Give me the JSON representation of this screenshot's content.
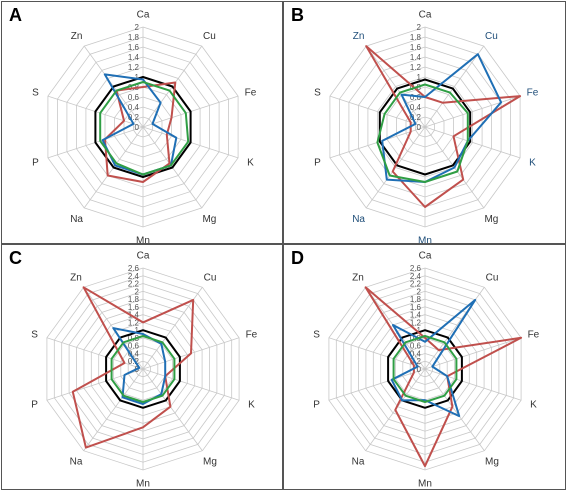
{
  "axes_order": [
    "Ca",
    "Cu",
    "Fe",
    "K",
    "Mg",
    "Mn",
    "Na",
    "P",
    "S",
    "Zn"
  ],
  "colors": {
    "grid": "#c8c8c8",
    "black": "#000000",
    "red": "#c0504d",
    "blue": "#1f6fb5",
    "green": "#2f9e44",
    "label_dark": "#333333",
    "label_blue": "#1f4e79"
  },
  "chart_data": [
    {
      "panel": "A",
      "type": "radar",
      "rmax": 2,
      "ticks": [
        "0",
        "0.2",
        "0.4",
        "0.6",
        "0.8",
        "1",
        "1.2",
        "1.4",
        "1.6",
        "1.8",
        "2"
      ],
      "axes": [
        "Ca",
        "Cu",
        "Fe",
        "K",
        "Mg",
        "Mn",
        "Na",
        "P",
        "S",
        "Zn"
      ],
      "highlight_axes": [],
      "series": [
        {
          "color": "black",
          "values": [
            1.0,
            1.0,
            1.0,
            1.0,
            1.0,
            1.0,
            1.0,
            1.0,
            1.0,
            1.0
          ]
        },
        {
          "color": "red",
          "values": [
            0.8,
            1.1,
            0.6,
            0.5,
            0.9,
            1.1,
            1.2,
            0.8,
            0.4,
            0.9
          ]
        },
        {
          "color": "blue",
          "values": [
            0.95,
            0.6,
            0.2,
            0.7,
            0.95,
            0.95,
            0.95,
            0.85,
            0.2,
            1.3
          ]
        },
        {
          "color": "green",
          "values": [
            0.9,
            0.9,
            0.9,
            0.95,
            0.95,
            0.95,
            0.9,
            0.9,
            0.9,
            0.9
          ]
        }
      ]
    },
    {
      "panel": "B",
      "type": "radar",
      "rmax": 2,
      "ticks": [
        "0",
        "0.2",
        "0.4",
        "0.6",
        "0.8",
        "1",
        "1.2",
        "1.4",
        "1.6",
        "1.8",
        "2"
      ],
      "axes": [
        "Ca",
        "Cu",
        "Fe",
        "K",
        "Mg",
        "Mn",
        "Na",
        "P",
        "S",
        "Zn"
      ],
      "highlight_axes": [
        "Cu",
        "Fe",
        "K",
        "Mn",
        "Na",
        "Zn"
      ],
      "series": [
        {
          "color": "black",
          "values": [
            0.95,
            0.95,
            0.95,
            0.95,
            0.95,
            0.95,
            0.95,
            0.95,
            0.95,
            0.95
          ]
        },
        {
          "color": "red",
          "values": [
            0.6,
            0.6,
            2.0,
            0.6,
            1.3,
            1.6,
            1.1,
            0.3,
            0.3,
            2.0
          ]
        },
        {
          "color": "blue",
          "values": [
            0.6,
            1.8,
            1.6,
            0.9,
            1.0,
            1.1,
            1.3,
            0.9,
            0.2,
            0.8
          ]
        },
        {
          "color": "green",
          "values": [
            0.85,
            0.85,
            0.9,
            0.9,
            1.1,
            1.1,
            1.2,
            1.0,
            0.85,
            0.85
          ]
        }
      ]
    },
    {
      "panel": "C",
      "type": "radar",
      "rmax": 2.6,
      "ticks": [
        "0",
        "0.2",
        "0.4",
        "0.6",
        "0.8",
        "1",
        "1.2",
        "1.4",
        "1.6",
        "1.8",
        "2",
        "2.2",
        "2.4",
        "2.6"
      ],
      "axes": [
        "Ca",
        "Cu",
        "Fe",
        "K",
        "Mg",
        "Mn",
        "Na",
        "P",
        "S",
        "Zn"
      ],
      "highlight_axes": [],
      "series": [
        {
          "color": "black",
          "values": [
            1.0,
            1.0,
            1.0,
            1.0,
            1.0,
            1.0,
            1.0,
            1.0,
            1.0,
            1.0
          ]
        },
        {
          "color": "red",
          "values": [
            1.2,
            2.2,
            1.3,
            0.6,
            1.2,
            1.5,
            2.5,
            1.9,
            0.5,
            2.6
          ]
        },
        {
          "color": "blue",
          "values": [
            0.9,
            0.8,
            0.6,
            0.6,
            0.8,
            0.9,
            0.9,
            0.5,
            0.1,
            1.3
          ]
        },
        {
          "color": "green",
          "values": [
            0.85,
            0.85,
            0.85,
            0.85,
            0.85,
            0.85,
            0.85,
            0.85,
            0.85,
            0.85
          ]
        }
      ]
    },
    {
      "panel": "D",
      "type": "radar",
      "rmax": 2.6,
      "ticks": [
        "0",
        "0.2",
        "0.4",
        "0.6",
        "0.8",
        "1",
        "1.2",
        "1.4",
        "1.6",
        "1.8",
        "2",
        "2.2",
        "2.4",
        "2.6"
      ],
      "axes": [
        "Ca",
        "Cu",
        "Fe",
        "K",
        "Mg",
        "Mn",
        "Na",
        "P",
        "S",
        "Zn"
      ],
      "highlight_axes": [],
      "series": [
        {
          "color": "black",
          "values": [
            1.0,
            1.0,
            1.0,
            1.0,
            1.0,
            1.0,
            1.0,
            1.0,
            1.0,
            1.0
          ]
        },
        {
          "color": "red",
          "values": [
            0.8,
            0.6,
            2.6,
            0.6,
            1.2,
            2.5,
            1.3,
            0.3,
            0.3,
            2.6
          ]
        },
        {
          "color": "blue",
          "values": [
            0.7,
            2.2,
            0.2,
            0.6,
            1.5,
            0.8,
            1.0,
            0.9,
            0.2,
            1.4
          ]
        },
        {
          "color": "green",
          "values": [
            0.85,
            0.85,
            0.85,
            0.85,
            0.85,
            0.85,
            0.85,
            0.85,
            0.85,
            0.85
          ]
        }
      ]
    }
  ]
}
